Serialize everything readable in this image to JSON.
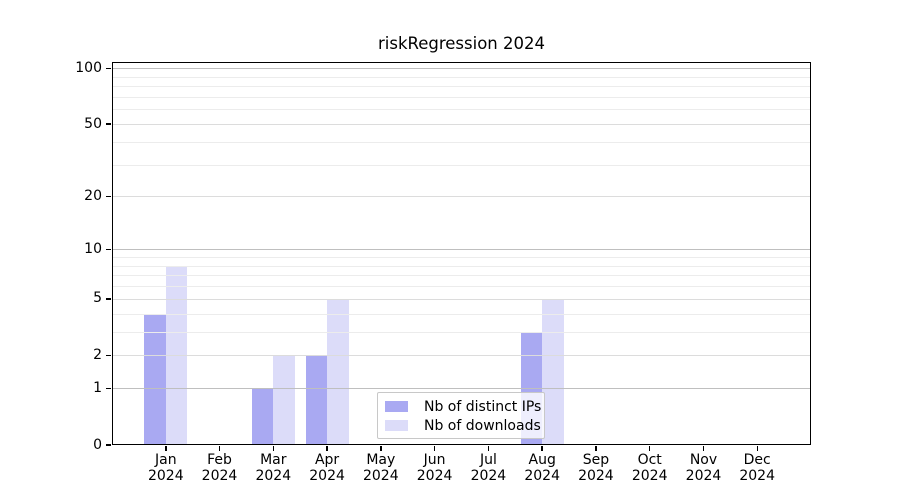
{
  "chart_data": {
    "type": "bar",
    "title": "riskRegression 2024",
    "categories": [
      "Jan",
      "Feb",
      "Mar",
      "Apr",
      "May",
      "Jun",
      "Jul",
      "Aug",
      "Sep",
      "Oct",
      "Nov",
      "Dec"
    ],
    "year_label": "2024",
    "series": [
      {
        "name": "Nb of distinct IPs",
        "color": "#a9a9f2",
        "values": [
          4,
          0,
          1,
          2,
          0,
          0,
          0,
          3,
          0,
          0,
          0,
          0
        ]
      },
      {
        "name": "Nb of downloads",
        "color": "#dcdcf9",
        "values": [
          8,
          0,
          2,
          5,
          0,
          0,
          0,
          5,
          0,
          0,
          0,
          0
        ]
      }
    ],
    "xlabel": "",
    "ylabel": "",
    "yscale": "log1p",
    "ylim": [
      0,
      108
    ],
    "yticks": [
      0,
      1,
      2,
      5,
      10,
      20,
      50,
      100
    ],
    "yticks_emphasized": [
      1,
      10,
      100
    ],
    "yminor_gridlines": [
      3,
      4,
      6,
      7,
      8,
      9,
      30,
      40,
      60,
      70,
      80,
      90
    ],
    "grid": "horizontal, drawn above bars",
    "legend_position": "bottom-center"
  },
  "colors": {
    "background": "#ffffff",
    "spine": "#000000",
    "grid_major": "#bfbfbf",
    "grid_mid": "#dcdcdc",
    "grid_minor": "#ececec",
    "legend_border": "#c8c8c8"
  }
}
